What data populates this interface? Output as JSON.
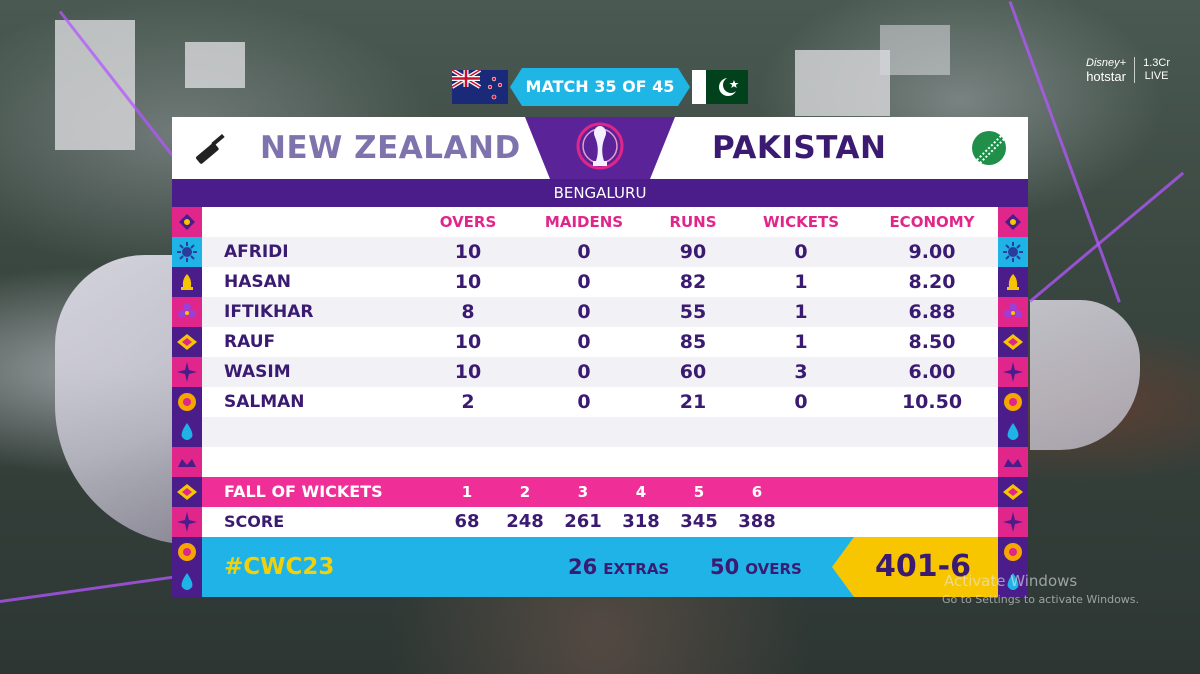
{
  "match": {
    "label": "MATCH 35 OF 45",
    "venue": "BENGALURU",
    "team_left": "NEW ZEALAND",
    "team_right": "PAKISTAN"
  },
  "broadcaster": {
    "brand_top": "Disney+",
    "brand": "hotstar",
    "viewers": "1.3Cr",
    "live": "LIVE"
  },
  "table": {
    "headers": [
      "OVERS",
      "MAIDENS",
      "RUNS",
      "WICKETS",
      "ECONOMY"
    ],
    "rows": [
      {
        "name": "AFRIDI",
        "overs": "10",
        "maidens": "0",
        "runs": "90",
        "wickets": "0",
        "economy": "9.00"
      },
      {
        "name": "HASAN",
        "overs": "10",
        "maidens": "0",
        "runs": "82",
        "wickets": "1",
        "economy": "8.20"
      },
      {
        "name": "IFTIKHAR",
        "overs": "8",
        "maidens": "0",
        "runs": "55",
        "wickets": "1",
        "economy": "6.88"
      },
      {
        "name": "RAUF",
        "overs": "10",
        "maidens": "0",
        "runs": "85",
        "wickets": "1",
        "economy": "8.50"
      },
      {
        "name": "WASIM",
        "overs": "10",
        "maidens": "0",
        "runs": "60",
        "wickets": "3",
        "economy": "6.00"
      },
      {
        "name": "SALMAN",
        "overs": "2",
        "maidens": "0",
        "runs": "21",
        "wickets": "0",
        "economy": "10.50"
      }
    ]
  },
  "fall_of_wickets": {
    "label": "FALL OF WICKETS",
    "numbers": [
      "1",
      "2",
      "3",
      "4",
      "5",
      "6"
    ],
    "score_label": "SCORE",
    "scores": [
      "68",
      "248",
      "261",
      "318",
      "345",
      "388"
    ]
  },
  "footer": {
    "hashtag": "#CWC23",
    "extras_value": "26",
    "extras_label": "EXTRAS",
    "overs_value": "50",
    "overs_label": "OVERS",
    "total": "401-6"
  },
  "watermark": {
    "line1": "Activate Windows",
    "line2": "Go to Settings to activate Windows."
  },
  "colors": {
    "purple": "#4b1d8a",
    "pink": "#ef2f97",
    "cyan": "#1fb3e7",
    "yellow": "#f7c600",
    "navy_text": "#3b1b72"
  }
}
